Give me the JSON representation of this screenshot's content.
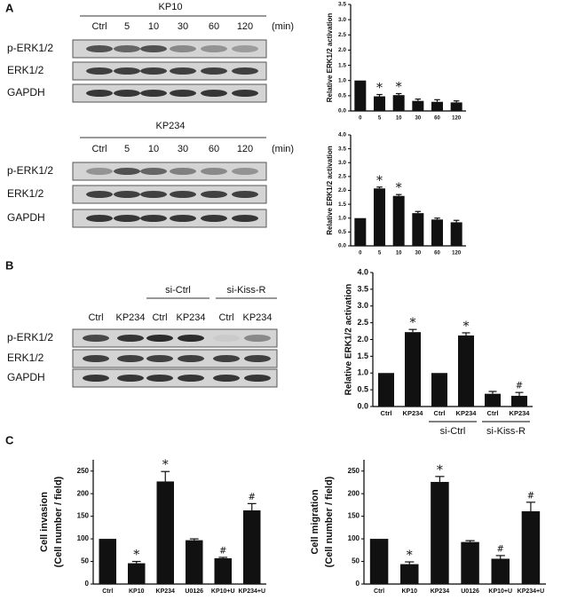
{
  "panels": [
    "A",
    "B",
    "C"
  ],
  "blots": [
    {
      "title": "KP10",
      "lanes": [
        "Ctrl",
        "5",
        "10",
        "30",
        "60",
        "120"
      ],
      "unit": "(min)",
      "rows": [
        "p-ERK1/2",
        "ERK1/2",
        "GAPDH"
      ]
    },
    {
      "title": "KP234",
      "lanes": [
        "Ctrl",
        "5",
        "10",
        "30",
        "60",
        "120"
      ],
      "unit": "(min)",
      "rows": [
        "p-ERK1/2",
        "ERK1/2",
        "GAPDH"
      ]
    },
    {
      "groups": [
        "si-Ctrl",
        "si-Kiss-R"
      ],
      "lanes": [
        "Ctrl",
        "KP234",
        "Ctrl",
        "KP234",
        "Ctrl",
        "KP234"
      ],
      "rows": [
        "p-ERK1/2",
        "ERK1/2",
        "GAPDH"
      ]
    }
  ],
  "chart_data": [
    {
      "type": "bar",
      "ylabel": [
        "Relative ERK1/2 activation"
      ],
      "categories": [
        "0",
        "5",
        "10",
        "30",
        "60",
        "120"
      ],
      "values": [
        1.0,
        0.48,
        0.52,
        0.33,
        0.3,
        0.28
      ],
      "errors": [
        0,
        0.06,
        0.05,
        0.06,
        0.07,
        0.05
      ],
      "color": "#111111",
      "ylim": [
        0,
        3.5
      ],
      "yticks": [
        {
          "value": 0,
          "label": "0.0"
        },
        0.5,
        {
          "value": 1,
          "label": "1.0"
        },
        1.5,
        {
          "value": 2,
          "label": "2.0"
        },
        2.5,
        {
          "value": 3,
          "label": "3.0"
        },
        3.5
      ],
      "annotations": [
        {
          "index": 1,
          "text": "*"
        },
        {
          "index": 2,
          "text": "*"
        }
      ]
    },
    {
      "type": "bar",
      "ylabel": [
        "Relative ERK1/2 activation"
      ],
      "categories": [
        "0",
        "5",
        "10",
        "30",
        "60",
        "120"
      ],
      "values": [
        1.0,
        2.07,
        1.8,
        1.18,
        0.95,
        0.85
      ],
      "errors": [
        0,
        0.05,
        0.05,
        0.06,
        0.05,
        0.07
      ],
      "color": "#111111",
      "ylim": [
        0,
        4
      ],
      "yticks": [
        {
          "value": 0,
          "label": "0.0"
        },
        0.5,
        {
          "value": 1,
          "label": "1.0"
        },
        1.5,
        {
          "value": 2,
          "label": "2.0"
        },
        2.5,
        {
          "value": 3,
          "label": "3.0"
        },
        3.5,
        {
          "value": 4,
          "label": "4.0"
        }
      ],
      "annotations": [
        {
          "index": 1,
          "text": "*"
        },
        {
          "index": 2,
          "text": "*"
        }
      ]
    },
    {
      "type": "bar",
      "ylabel": [
        "Relative ERK1/2 activation"
      ],
      "categories": [
        "Ctrl",
        "KP234",
        "Ctrl",
        "KP234",
        "Ctrl",
        "KP234"
      ],
      "values": [
        1.0,
        2.22,
        1.0,
        2.12,
        0.38,
        0.32
      ],
      "errors": [
        0,
        0.08,
        0,
        0.08,
        0.07,
        0.1
      ],
      "color": "#111111",
      "ylim": [
        0,
        4
      ],
      "yticks": [
        {
          "value": 0,
          "label": "0.0"
        },
        0.5,
        {
          "value": 1,
          "label": "1.0"
        },
        1.5,
        {
          "value": 2,
          "label": "2.0"
        },
        2.5,
        {
          "value": 3,
          "label": "3.0"
        },
        3.5,
        {
          "value": 4,
          "label": "4.0"
        }
      ],
      "annotations": [
        {
          "index": 1,
          "text": "*"
        },
        {
          "index": 3,
          "text": "*"
        },
        {
          "index": 5,
          "text": "#"
        }
      ],
      "groups": [
        {
          "label": "si-Ctrl",
          "from": 2,
          "to": 3
        },
        {
          "label": "si-Kiss-R",
          "from": 4,
          "to": 5
        }
      ]
    },
    {
      "type": "bar",
      "ylabel": [
        "Cell invasion",
        "(Cell number / field)"
      ],
      "categories": [
        "Ctrl",
        "KP10",
        "KP234",
        "U0126",
        "KP10+U",
        "KP234+U"
      ],
      "values": [
        100,
        46,
        227,
        97,
        57,
        163
      ],
      "errors": [
        0,
        4,
        22,
        3,
        2,
        15
      ],
      "color": "#111111",
      "ylim": [
        0,
        275
      ],
      "yticks": [
        0,
        50,
        100,
        150,
        200,
        250
      ],
      "annotations": [
        {
          "index": 1,
          "text": "*"
        },
        {
          "index": 2,
          "text": "*"
        },
        {
          "index": 4,
          "text": "#"
        },
        {
          "index": 5,
          "text": "#"
        }
      ]
    },
    {
      "type": "bar",
      "ylabel": [
        "Cell migration",
        "(Cell number / field)"
      ],
      "categories": [
        "Ctrl",
        "KP10",
        "KP234",
        "U0126",
        "KP10+U",
        "KP234+U"
      ],
      "values": [
        100,
        44,
        226,
        93,
        56,
        161
      ],
      "errors": [
        0,
        5,
        12,
        3,
        7,
        20
      ],
      "color": "#111111",
      "ylim": [
        0,
        275
      ],
      "yticks": [
        0,
        50,
        100,
        150,
        200,
        250
      ],
      "annotations": [
        {
          "index": 1,
          "text": "*"
        },
        {
          "index": 2,
          "text": "*"
        },
        {
          "index": 4,
          "text": "#"
        },
        {
          "index": 5,
          "text": "#"
        }
      ]
    }
  ]
}
